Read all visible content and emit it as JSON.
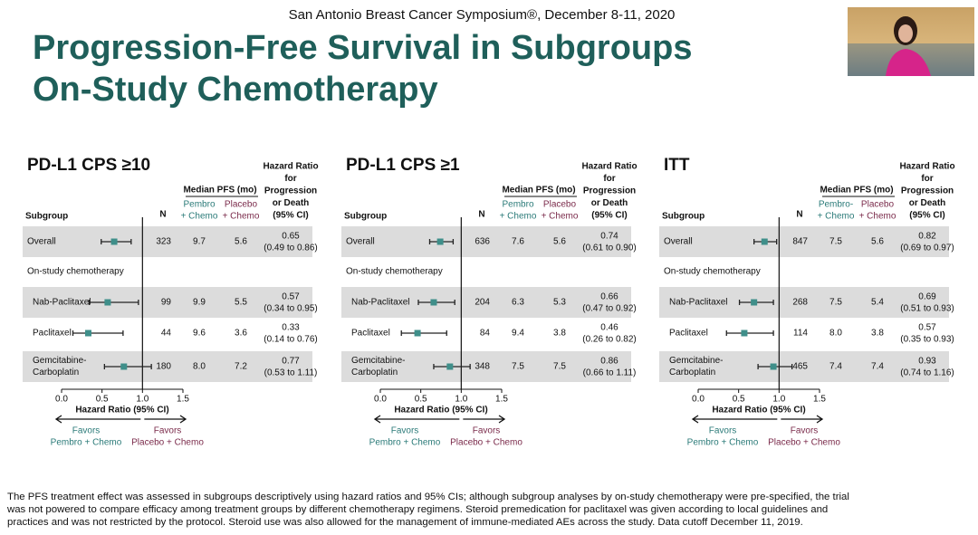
{
  "header": {
    "conference": "San Antonio Breast Cancer Symposium®, December 8-11, 2020",
    "title_lines": [
      "Progression-Free Survival in Subgroups",
      "On-Study Chemotherapy"
    ]
  },
  "chart_data": [
    {
      "type": "forest",
      "title": "PD-L1 CPS ≥10",
      "marker_color": "#3f8f8a",
      "pembro_color": "#2a7a78",
      "placebo_color": "#7a2a4a",
      "columns": {
        "subgroup": "Subgroup",
        "n": "N",
        "median": "Median PFS (mo)",
        "pembro": [
          "Pembro",
          "+ Chemo"
        ],
        "placebo": [
          "Placebo",
          "+ Chemo"
        ],
        "hr": [
          "Hazard Ratio",
          "for",
          "Progression",
          "or Death",
          "(95% CI)"
        ]
      },
      "section_label": "On-study chemotherapy",
      "rows": [
        {
          "name": [
            "Overall"
          ],
          "n": 323,
          "pembro": "9.7",
          "placebo": "5.6",
          "hr": 0.65,
          "lo": 0.49,
          "hi": 0.86,
          "hr_label": "0.65",
          "ci_label": "(0.49 to 0.86)"
        },
        {
          "name": [
            "Nab-Paclitaxel"
          ],
          "n": 99,
          "pembro": "9.9",
          "placebo": "5.5",
          "hr": 0.57,
          "lo": 0.34,
          "hi": 0.95,
          "hr_label": "0.57",
          "ci_label": "(0.34 to 0.95)"
        },
        {
          "name": [
            "Paclitaxel"
          ],
          "n": 44,
          "pembro": "9.6",
          "placebo": "3.6",
          "hr": 0.33,
          "lo": 0.14,
          "hi": 0.76,
          "hr_label": "0.33",
          "ci_label": "(0.14 to 0.76)"
        },
        {
          "name": [
            "Gemcitabine-",
            "Carboplatin"
          ],
          "n": 180,
          "pembro": "8.0",
          "placebo": "7.2",
          "hr": 0.77,
          "lo": 0.53,
          "hi": 1.11,
          "hr_label": "0.77",
          "ci_label": "(0.53 to 1.11)"
        }
      ],
      "xlim": [
        0,
        1.5
      ],
      "xticks": [
        {
          "value": 0,
          "label": "0.0"
        },
        0.5,
        {
          "value": 1,
          "label": "1.0"
        },
        1.5
      ],
      "reference": 1,
      "xlabel": "Hazard Ratio (95% CI)",
      "favors_left": [
        "Favors",
        "Pembro + Chemo"
      ],
      "favors_right": [
        "Favors",
        "Placebo + Chemo"
      ]
    },
    {
      "type": "forest",
      "title": "PD-L1 CPS ≥1",
      "marker_color": "#3f8f8a",
      "pembro_color": "#2a7a78",
      "placebo_color": "#7a2a4a",
      "columns": {
        "subgroup": "Subgroup",
        "n": "N",
        "median": "Median PFS (mo)",
        "pembro": [
          "Pembro",
          "+ Chemo"
        ],
        "placebo": [
          "Placebo",
          "+ Chemo"
        ],
        "hr": [
          "Hazard Ratio",
          "for",
          "Progression",
          "or Death",
          "(95% CI)"
        ]
      },
      "section_label": "On-study chemotherapy",
      "rows": [
        {
          "name": [
            "Overall"
          ],
          "n": 636,
          "pembro": "7.6",
          "placebo": "5.6",
          "hr": 0.74,
          "lo": 0.61,
          "hi": 0.9,
          "hr_label": "0.74",
          "ci_label": "(0.61 to 0.90)"
        },
        {
          "name": [
            "Nab-Paclitaxel"
          ],
          "n": 204,
          "pembro": "6.3",
          "placebo": "5.3",
          "hr": 0.66,
          "lo": 0.47,
          "hi": 0.92,
          "hr_label": "0.66",
          "ci_label": "(0.47 to 0.92)"
        },
        {
          "name": [
            "Paclitaxel"
          ],
          "n": 84,
          "pembro": "9.4",
          "placebo": "3.8",
          "hr": 0.46,
          "lo": 0.26,
          "hi": 0.82,
          "hr_label": "0.46",
          "ci_label": "(0.26 to 0.82)"
        },
        {
          "name": [
            "Gemcitabine-",
            "Carboplatin"
          ],
          "n": 348,
          "pembro": "7.5",
          "placebo": "7.5",
          "hr": 0.86,
          "lo": 0.66,
          "hi": 1.11,
          "hr_label": "0.86",
          "ci_label": "(0.66 to 1.11)"
        }
      ],
      "xlim": [
        0,
        1.5
      ],
      "xticks": [
        {
          "value": 0,
          "label": "0.0"
        },
        0.5,
        {
          "value": 1,
          "label": "1.0"
        },
        1.5
      ],
      "reference": 1,
      "xlabel": "Hazard Ratio (95% CI)",
      "favors_left": [
        "Favors",
        "Pembro + Chemo"
      ],
      "favors_right": [
        "Favors",
        "Placebo + Chemo"
      ]
    },
    {
      "type": "forest",
      "title": "ITT",
      "marker_color": "#3f8f8a",
      "pembro_color": "#2a7a78",
      "placebo_color": "#7a2a4a",
      "columns": {
        "subgroup": "Subgroup",
        "n": "N",
        "median": "Median PFS (mo)",
        "pembro": [
          "Pembro-",
          "+ Chemo"
        ],
        "placebo": [
          "Placebo",
          "+ Chemo"
        ],
        "hr": [
          "Hazard Ratio",
          "for",
          "Progression",
          "or Death",
          "(95% CI)"
        ]
      },
      "section_label": "On-study chemotherapy",
      "rows": [
        {
          "name": [
            "Overall"
          ],
          "n": 847,
          "pembro": "7.5",
          "placebo": "5.6",
          "hr": 0.82,
          "lo": 0.69,
          "hi": 0.97,
          "hr_label": "0.82",
          "ci_label": "(0.69 to 0.97)"
        },
        {
          "name": [
            "Nab-Paclitaxel"
          ],
          "n": 268,
          "pembro": "7.5",
          "placebo": "5.4",
          "hr": 0.69,
          "lo": 0.51,
          "hi": 0.93,
          "hr_label": "0.69",
          "ci_label": "(0.51 to 0.93)"
        },
        {
          "name": [
            "Paclitaxel"
          ],
          "n": 114,
          "pembro": "8.0",
          "placebo": "3.8",
          "hr": 0.57,
          "lo": 0.35,
          "hi": 0.93,
          "hr_label": "0.57",
          "ci_label": "(0.35 to 0.93)"
        },
        {
          "name": [
            "Gemcitabine-",
            "Carboplatin"
          ],
          "n": 465,
          "pembro": "7.4",
          "placebo": "7.4",
          "hr": 0.93,
          "lo": 0.74,
          "hi": 1.16,
          "hr_label": "0.93",
          "ci_label": "(0.74 to 1.16)"
        }
      ],
      "xlim": [
        0,
        1.5
      ],
      "xticks": [
        {
          "value": 0,
          "label": "0.0"
        },
        0.5,
        {
          "value": 1,
          "label": "1.0"
        },
        1.5
      ],
      "reference": 1,
      "xlabel": "Hazard Ratio (95% CI)",
      "favors_left": [
        "Favors",
        "Pembro + Chemo"
      ],
      "favors_right": [
        "Favors",
        "Placebo + Chemo"
      ]
    }
  ],
  "footnote": [
    "The PFS treatment effect was assessed in subgroups descriptively using hazard ratios and 95% CIs; although subgroup analyses by on-study chemotherapy were pre-specified, the trial",
    "was not powered to compare efficacy among treatment groups by different chemotherapy regimens. Steroid premedication for paclitaxel was given according to local guidelines and",
    "practices and was not restricted by the protocol. Steroid use was also allowed for the management of immune-mediated AEs across the study. Data cutoff December 11, 2019."
  ]
}
